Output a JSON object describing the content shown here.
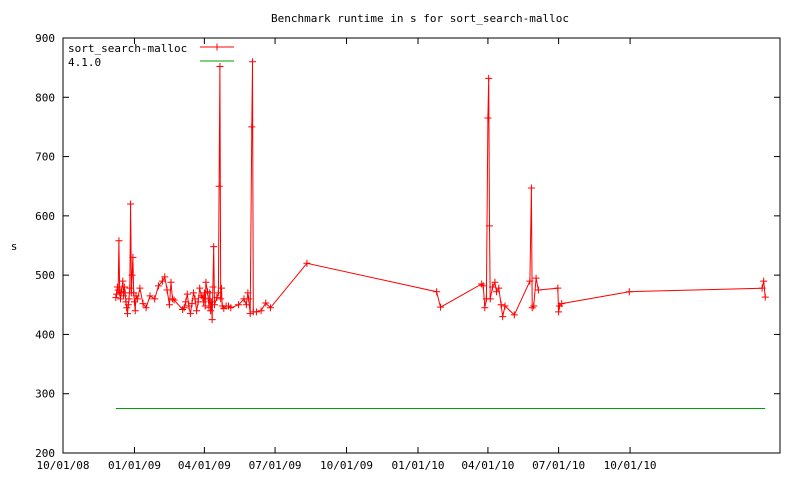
{
  "chart_data": {
    "type": "line",
    "title": "Benchmark runtime in s for sort_search-malloc",
    "xlabel": "",
    "ylabel": "s",
    "ylim": [
      200,
      900
    ],
    "xlim": [
      "2008-10-01",
      "2011-04-12"
    ],
    "yticks": [
      200,
      300,
      400,
      500,
      600,
      700,
      800,
      900
    ],
    "xticks": [
      {
        "label": "10/01/08",
        "date": "2008-10-01"
      },
      {
        "label": "01/01/09",
        "date": "2009-01-01"
      },
      {
        "label": "04/01/09",
        "date": "2009-04-01"
      },
      {
        "label": "07/01/09",
        "date": "2009-07-01"
      },
      {
        "label": "10/01/09",
        "date": "2009-10-01"
      },
      {
        "label": "01/01/10",
        "date": "2010-01-01"
      },
      {
        "label": "04/01/10",
        "date": "2010-04-01"
      },
      {
        "label": "07/01/10",
        "date": "2010-07-01"
      },
      {
        "label": "10/01/10",
        "date": "2010-10-01"
      }
    ],
    "legend_position": "top-left",
    "grid": false,
    "series": [
      {
        "name": "sort_search-malloc",
        "color": "#ff0000",
        "marker": "plus",
        "points": [
          [
            "2008-12-08",
            462
          ],
          [
            "2008-12-09",
            468
          ],
          [
            "2008-12-10",
            480
          ],
          [
            "2008-12-11",
            475
          ],
          [
            "2008-12-12",
            558
          ],
          [
            "2008-12-13",
            470
          ],
          [
            "2008-12-14",
            460
          ],
          [
            "2008-12-15",
            472
          ],
          [
            "2008-12-17",
            490
          ],
          [
            "2008-12-18",
            465
          ],
          [
            "2008-12-19",
            480
          ],
          [
            "2008-12-20",
            470
          ],
          [
            "2008-12-21",
            455
          ],
          [
            "2008-12-22",
            445
          ],
          [
            "2008-12-23",
            435
          ],
          [
            "2008-12-24",
            450
          ],
          [
            "2008-12-25",
            460
          ],
          [
            "2008-12-26",
            478
          ],
          [
            "2008-12-27",
            620
          ],
          [
            "2008-12-28",
            470
          ],
          [
            "2008-12-29",
            500
          ],
          [
            "2008-12-30",
            530
          ],
          [
            "2008-12-31",
            470
          ],
          [
            "2009-01-01",
            455
          ],
          [
            "2009-01-02",
            440
          ],
          [
            "2009-01-03",
            465
          ],
          [
            "2009-01-05",
            460
          ],
          [
            "2009-01-08",
            478
          ],
          [
            "2009-01-12",
            452
          ],
          [
            "2009-01-16",
            445
          ],
          [
            "2009-01-21",
            465
          ],
          [
            "2009-01-27",
            460
          ],
          [
            "2009-02-01",
            482
          ],
          [
            "2009-02-06",
            490
          ],
          [
            "2009-02-09",
            497
          ],
          [
            "2009-02-12",
            475
          ],
          [
            "2009-02-15",
            450
          ],
          [
            "2009-02-17",
            488
          ],
          [
            "2009-02-19",
            460
          ],
          [
            "2009-02-21",
            458
          ],
          [
            "2009-03-04",
            442
          ],
          [
            "2009-03-06",
            445
          ],
          [
            "2009-03-08",
            455
          ],
          [
            "2009-03-10",
            468
          ],
          [
            "2009-03-12",
            448
          ],
          [
            "2009-03-14",
            435
          ],
          [
            "2009-03-16",
            452
          ],
          [
            "2009-03-18",
            470
          ],
          [
            "2009-03-20",
            460
          ],
          [
            "2009-03-22",
            440
          ],
          [
            "2009-03-24",
            455
          ],
          [
            "2009-03-26",
            478
          ],
          [
            "2009-03-28",
            465
          ],
          [
            "2009-03-30",
            462
          ],
          [
            "2009-03-31",
            455
          ],
          [
            "2009-04-01",
            470
          ],
          [
            "2009-04-02",
            448
          ],
          [
            "2009-04-03",
            488
          ],
          [
            "2009-04-05",
            472
          ],
          [
            "2009-04-06",
            460
          ],
          [
            "2009-04-07",
            445
          ],
          [
            "2009-04-08",
            470
          ],
          [
            "2009-04-09",
            440
          ],
          [
            "2009-04-10",
            455
          ],
          [
            "2009-04-11",
            425
          ],
          [
            "2009-04-12",
            480
          ],
          [
            "2009-04-13",
            548
          ],
          [
            "2009-04-14",
            450
          ],
          [
            "2009-04-17",
            462
          ],
          [
            "2009-04-19",
            470
          ],
          [
            "2009-04-20",
            650
          ],
          [
            "2009-04-21",
            852
          ],
          [
            "2009-04-22",
            460
          ],
          [
            "2009-04-23",
            478
          ],
          [
            "2009-04-24",
            448
          ],
          [
            "2009-04-26",
            444
          ],
          [
            "2009-04-29",
            448
          ],
          [
            "2009-05-02",
            448
          ],
          [
            "2009-05-05",
            445
          ],
          [
            "2009-05-15",
            450
          ],
          [
            "2009-05-22",
            460
          ],
          [
            "2009-05-25",
            450
          ],
          [
            "2009-05-27",
            470
          ],
          [
            "2009-05-28",
            460
          ],
          [
            "2009-05-30",
            435
          ],
          [
            "2009-06-01",
            750
          ],
          [
            "2009-06-02",
            860
          ],
          [
            "2009-06-03",
            438
          ],
          [
            "2009-06-07",
            438
          ],
          [
            "2009-06-13",
            440
          ],
          [
            "2009-06-19",
            453
          ],
          [
            "2009-06-25",
            445
          ],
          [
            "2009-08-11",
            520
          ],
          [
            "2010-01-25",
            472
          ],
          [
            "2010-01-30",
            446
          ],
          [
            "2010-03-24",
            485
          ],
          [
            "2010-03-26",
            482
          ],
          [
            "2010-03-28",
            445
          ],
          [
            "2010-03-30",
            460
          ],
          [
            "2010-04-01",
            765
          ],
          [
            "2010-04-02",
            832
          ],
          [
            "2010-04-03",
            583
          ],
          [
            "2010-04-04",
            460
          ],
          [
            "2010-04-07",
            480
          ],
          [
            "2010-04-10",
            488
          ],
          [
            "2010-04-12",
            472
          ],
          [
            "2010-04-15",
            478
          ],
          [
            "2010-04-18",
            450
          ],
          [
            "2010-04-20",
            430
          ],
          [
            "2010-04-23",
            448
          ],
          [
            "2010-05-05",
            433
          ],
          [
            "2010-05-25",
            490
          ],
          [
            "2010-05-27",
            647
          ],
          [
            "2010-05-28",
            445
          ],
          [
            "2010-05-30",
            448
          ],
          [
            "2010-06-02",
            495
          ],
          [
            "2010-06-05",
            475
          ],
          [
            "2010-06-30",
            478
          ],
          [
            "2010-07-01",
            438
          ],
          [
            "2010-07-02",
            448
          ],
          [
            "2010-07-05",
            452
          ],
          [
            "2010-09-30",
            472
          ],
          [
            "2011-03-20",
            478
          ],
          [
            "2011-03-22",
            490
          ],
          [
            "2011-03-24",
            463
          ]
        ]
      },
      {
        "name": "4.1.0",
        "color": "#00a000",
        "marker": "none",
        "points": [
          [
            "2008-12-08",
            275
          ],
          [
            "2011-03-24",
            275
          ]
        ]
      }
    ]
  }
}
